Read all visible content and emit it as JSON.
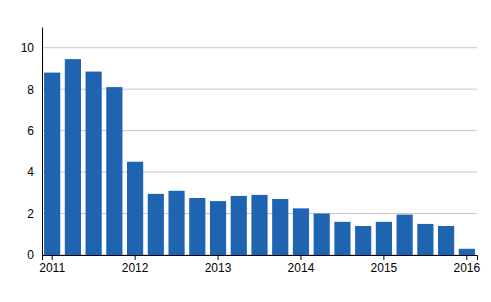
{
  "chart_data": {
    "type": "bar",
    "categories": [
      "2011",
      null,
      null,
      null,
      "2012",
      null,
      null,
      null,
      "2013",
      null,
      null,
      null,
      "2014",
      null,
      null,
      null,
      "2015",
      null,
      null,
      null,
      "2016"
    ],
    "values": [
      8.8,
      9.45,
      8.85,
      8.1,
      4.5,
      2.95,
      3.1,
      2.75,
      2.6,
      2.85,
      2.9,
      2.7,
      2.25,
      2.0,
      1.6,
      1.4,
      1.6,
      1.95,
      1.5,
      1.4,
      0.3
    ],
    "color": "#1f64b1",
    "ylim": [
      0,
      11
    ],
    "yticks": [
      0,
      2,
      4,
      6,
      8,
      10
    ],
    "grid": true
  }
}
